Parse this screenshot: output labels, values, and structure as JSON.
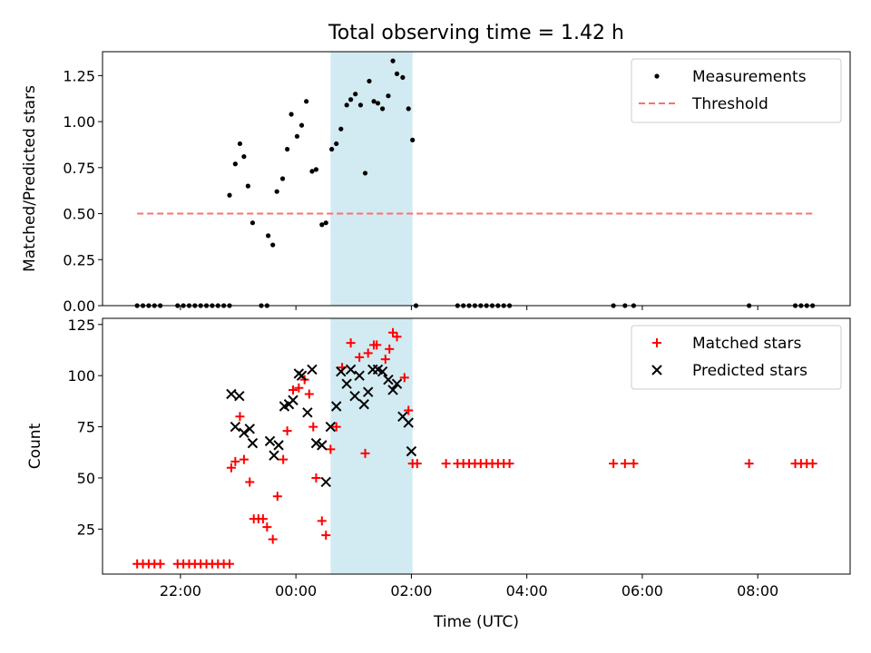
{
  "figure": {
    "title": "Total observing time = 1.42 h"
  },
  "colors": {
    "measurements": "#000000",
    "threshold": "#ff6f6f",
    "matched": "#ff0000",
    "predicted": "#000000",
    "window": "#add8e6"
  },
  "chart_data": [
    {
      "type": "scatter",
      "xlabel": "",
      "ylabel": "Matched/Predicted stars",
      "x_unit": "hours relative to 00:00 UTC",
      "xlim": [
        -3.35,
        9.6
      ],
      "ylim": [
        0,
        1.38
      ],
      "yticks": [
        0.0,
        0.25,
        0.5,
        0.75,
        1.0,
        1.25
      ],
      "ytick_labels": [
        "0.00",
        "0.25",
        "0.50",
        "0.75",
        "1.00",
        "1.25"
      ],
      "xticks": [
        -2,
        0,
        2,
        4,
        6,
        8
      ],
      "shaded_x": [
        0.6,
        2.02
      ],
      "legend": "upper-right",
      "series": [
        {
          "name": "Measurements",
          "marker": "dot",
          "points": [
            [
              -2.75,
              0
            ],
            [
              -2.65,
              0
            ],
            [
              -2.55,
              0
            ],
            [
              -2.45,
              0
            ],
            [
              -2.35,
              0
            ],
            [
              -2.05,
              0
            ],
            [
              -1.95,
              0
            ],
            [
              -1.85,
              0
            ],
            [
              -1.75,
              0
            ],
            [
              -1.65,
              0
            ],
            [
              -1.55,
              0
            ],
            [
              -1.45,
              0
            ],
            [
              -1.35,
              0
            ],
            [
              -1.25,
              0
            ],
            [
              -1.15,
              0
            ],
            [
              -1.15,
              0.6
            ],
            [
              -1.05,
              0.77
            ],
            [
              -0.97,
              0.88
            ],
            [
              -0.9,
              0.81
            ],
            [
              -0.83,
              0.65
            ],
            [
              -0.75,
              0.45
            ],
            [
              -0.6,
              0
            ],
            [
              -0.5,
              0
            ],
            [
              -0.48,
              0.38
            ],
            [
              -0.4,
              0.33
            ],
            [
              -0.33,
              0.62
            ],
            [
              -0.23,
              0.69
            ],
            [
              -0.15,
              0.85
            ],
            [
              -0.08,
              1.04
            ],
            [
              0.02,
              0.92
            ],
            [
              0.1,
              0.98
            ],
            [
              0.18,
              1.11
            ],
            [
              0.28,
              0.73
            ],
            [
              0.35,
              0.74
            ],
            [
              0.45,
              0.44
            ],
            [
              0.52,
              0.45
            ],
            [
              0.62,
              0.85
            ],
            [
              0.7,
              0.88
            ],
            [
              0.78,
              0.96
            ],
            [
              0.88,
              1.09
            ],
            [
              0.95,
              1.12
            ],
            [
              1.03,
              1.15
            ],
            [
              1.12,
              1.09
            ],
            [
              1.2,
              0.72
            ],
            [
              1.27,
              1.22
            ],
            [
              1.35,
              1.11
            ],
            [
              1.42,
              1.1
            ],
            [
              1.5,
              1.07
            ],
            [
              1.6,
              1.14
            ],
            [
              1.68,
              1.33
            ],
            [
              1.75,
              1.26
            ],
            [
              1.85,
              1.24
            ],
            [
              1.95,
              1.07
            ],
            [
              2.02,
              0.9
            ],
            [
              2.08,
              0
            ],
            [
              2.8,
              0
            ],
            [
              2.9,
              0
            ],
            [
              3.0,
              0
            ],
            [
              3.1,
              0
            ],
            [
              3.2,
              0
            ],
            [
              3.3,
              0
            ],
            [
              3.4,
              0
            ],
            [
              3.5,
              0
            ],
            [
              3.6,
              0
            ],
            [
              3.7,
              0
            ],
            [
              5.5,
              0
            ],
            [
              5.7,
              0
            ],
            [
              5.85,
              0
            ],
            [
              7.85,
              0
            ],
            [
              8.65,
              0
            ],
            [
              8.75,
              0
            ],
            [
              8.85,
              0
            ],
            [
              8.95,
              0
            ]
          ]
        },
        {
          "name": "Threshold",
          "marker": "dashed-line",
          "points": [
            [
              -2.75,
              0.5
            ],
            [
              8.95,
              0.5
            ]
          ]
        }
      ]
    },
    {
      "type": "scatter",
      "xlabel": "Time (UTC)",
      "ylabel": "Count",
      "x_unit": "hours relative to 00:00 UTC",
      "xlim": [
        -3.35,
        9.6
      ],
      "ylim": [
        3,
        128
      ],
      "yticks": [
        25,
        50,
        75,
        100,
        125
      ],
      "ytick_labels": [
        "25",
        "50",
        "75",
        "100",
        "125"
      ],
      "xticks": [
        -2,
        0,
        2,
        4,
        6,
        8
      ],
      "xtick_labels": [
        "22:00",
        "00:00",
        "02:00",
        "04:00",
        "06:00",
        "08:00"
      ],
      "shaded_x": [
        0.6,
        2.02
      ],
      "legend": "upper-right",
      "series": [
        {
          "name": "Matched stars",
          "marker": "plus",
          "points": [
            [
              -2.75,
              8
            ],
            [
              -2.65,
              8
            ],
            [
              -2.55,
              8
            ],
            [
              -2.45,
              8
            ],
            [
              -2.35,
              8
            ],
            [
              -2.05,
              8
            ],
            [
              -1.95,
              8
            ],
            [
              -1.85,
              8
            ],
            [
              -1.75,
              8
            ],
            [
              -1.65,
              8
            ],
            [
              -1.55,
              8
            ],
            [
              -1.45,
              8
            ],
            [
              -1.35,
              8
            ],
            [
              -1.25,
              8
            ],
            [
              -1.15,
              8
            ],
            [
              -1.12,
              55
            ],
            [
              -1.05,
              58
            ],
            [
              -0.97,
              80
            ],
            [
              -0.9,
              59
            ],
            [
              -0.8,
              48
            ],
            [
              -0.73,
              30
            ],
            [
              -0.65,
              30
            ],
            [
              -0.57,
              30
            ],
            [
              -0.5,
              26
            ],
            [
              -0.4,
              20
            ],
            [
              -0.32,
              41
            ],
            [
              -0.22,
              59
            ],
            [
              -0.15,
              73
            ],
            [
              -0.05,
              93
            ],
            [
              0.05,
              94
            ],
            [
              0.15,
              98
            ],
            [
              0.23,
              91
            ],
            [
              0.3,
              75
            ],
            [
              0.35,
              50
            ],
            [
              0.45,
              29
            ],
            [
              0.52,
              22
            ],
            [
              0.6,
              64
            ],
            [
              0.7,
              75
            ],
            [
              0.8,
              104
            ],
            [
              0.95,
              116
            ],
            [
              1.1,
              109
            ],
            [
              1.2,
              62
            ],
            [
              1.25,
              111
            ],
            [
              1.35,
              115
            ],
            [
              1.4,
              115
            ],
            [
              1.55,
              108
            ],
            [
              1.62,
              113
            ],
            [
              1.68,
              121
            ],
            [
              1.75,
              119
            ],
            [
              1.88,
              99
            ],
            [
              1.95,
              83
            ],
            [
              2.02,
              57
            ],
            [
              2.1,
              57
            ],
            [
              2.6,
              57
            ],
            [
              2.8,
              57
            ],
            [
              2.9,
              57
            ],
            [
              3.0,
              57
            ],
            [
              3.1,
              57
            ],
            [
              3.2,
              57
            ],
            [
              3.3,
              57
            ],
            [
              3.4,
              57
            ],
            [
              3.5,
              57
            ],
            [
              3.6,
              57
            ],
            [
              3.7,
              57
            ],
            [
              5.5,
              57
            ],
            [
              5.7,
              57
            ],
            [
              5.85,
              57
            ],
            [
              7.85,
              57
            ],
            [
              8.65,
              57
            ],
            [
              8.75,
              57
            ],
            [
              8.85,
              57
            ],
            [
              8.95,
              57
            ]
          ]
        },
        {
          "name": "Predicted stars",
          "marker": "x",
          "points": [
            [
              -1.12,
              91
            ],
            [
              -1.05,
              75
            ],
            [
              -0.98,
              90
            ],
            [
              -0.9,
              72
            ],
            [
              -0.8,
              74
            ],
            [
              -0.75,
              67
            ],
            [
              -0.45,
              68
            ],
            [
              -0.38,
              61
            ],
            [
              -0.3,
              66
            ],
            [
              -0.2,
              85
            ],
            [
              -0.12,
              86
            ],
            [
              -0.05,
              88
            ],
            [
              0.05,
              101
            ],
            [
              0.1,
              100
            ],
            [
              0.2,
              82
            ],
            [
              0.28,
              103
            ],
            [
              0.35,
              67
            ],
            [
              0.45,
              66
            ],
            [
              0.52,
              48
            ],
            [
              0.6,
              75
            ],
            [
              0.7,
              85
            ],
            [
              0.78,
              102
            ],
            [
              0.88,
              96
            ],
            [
              0.95,
              103
            ],
            [
              1.02,
              90
            ],
            [
              1.1,
              100
            ],
            [
              1.18,
              86
            ],
            [
              1.25,
              92
            ],
            [
              1.33,
              103
            ],
            [
              1.42,
              103
            ],
            [
              1.5,
              102
            ],
            [
              1.6,
              98
            ],
            [
              1.68,
              93
            ],
            [
              1.75,
              96
            ],
            [
              1.85,
              80
            ],
            [
              1.95,
              77
            ],
            [
              2.0,
              63
            ]
          ]
        }
      ]
    }
  ]
}
